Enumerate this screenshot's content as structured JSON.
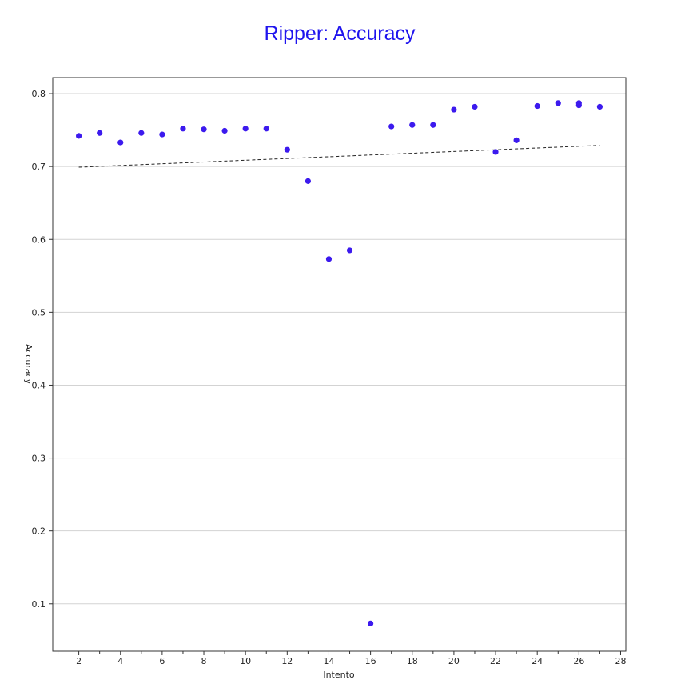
{
  "chart_data": {
    "type": "scatter",
    "title": "Ripper: Accuracy",
    "xlabel": "Intento",
    "ylabel": "Accuracy",
    "x_ticks": [
      2,
      4,
      6,
      8,
      10,
      12,
      14,
      16,
      18,
      20,
      22,
      24,
      26,
      28
    ],
    "y_ticks": [
      0.1,
      0.2,
      0.3,
      0.4,
      0.5,
      0.6,
      0.7,
      0.8
    ],
    "xlim": [
      0.75,
      28.25
    ],
    "ylim": [
      0.035,
      0.822
    ],
    "grid": "horizontal",
    "point_color": "#3c1aee",
    "title_color": "#1f14ee",
    "series": [
      {
        "points": [
          {
            "x": 2,
            "y": 0.742
          },
          {
            "x": 3,
            "y": 0.746
          },
          {
            "x": 4,
            "y": 0.733
          },
          {
            "x": 5,
            "y": 0.746
          },
          {
            "x": 6,
            "y": 0.744
          },
          {
            "x": 7,
            "y": 0.752
          },
          {
            "x": 8,
            "y": 0.751
          },
          {
            "x": 9,
            "y": 0.749
          },
          {
            "x": 10,
            "y": 0.752
          },
          {
            "x": 11,
            "y": 0.752
          },
          {
            "x": 12,
            "y": 0.723
          },
          {
            "x": 13,
            "y": 0.68
          },
          {
            "x": 14,
            "y": 0.573
          },
          {
            "x": 15,
            "y": 0.585
          },
          {
            "x": 16,
            "y": 0.073
          },
          {
            "x": 17,
            "y": 0.755
          },
          {
            "x": 18,
            "y": 0.757
          },
          {
            "x": 19,
            "y": 0.757
          },
          {
            "x": 20,
            "y": 0.778
          },
          {
            "x": 21,
            "y": 0.782
          },
          {
            "x": 22,
            "y": 0.72
          },
          {
            "x": 23,
            "y": 0.736
          },
          {
            "x": 24,
            "y": 0.783
          },
          {
            "x": 25,
            "y": 0.787
          },
          {
            "x": 26,
            "y": 0.784
          },
          {
            "x": 26,
            "y": 0.787
          },
          {
            "x": 27,
            "y": 0.782
          }
        ]
      }
    ],
    "trendline": {
      "style": "dashed",
      "from": {
        "x": 2,
        "y": 0.699
      },
      "to": {
        "x": 27,
        "y": 0.729
      }
    }
  }
}
